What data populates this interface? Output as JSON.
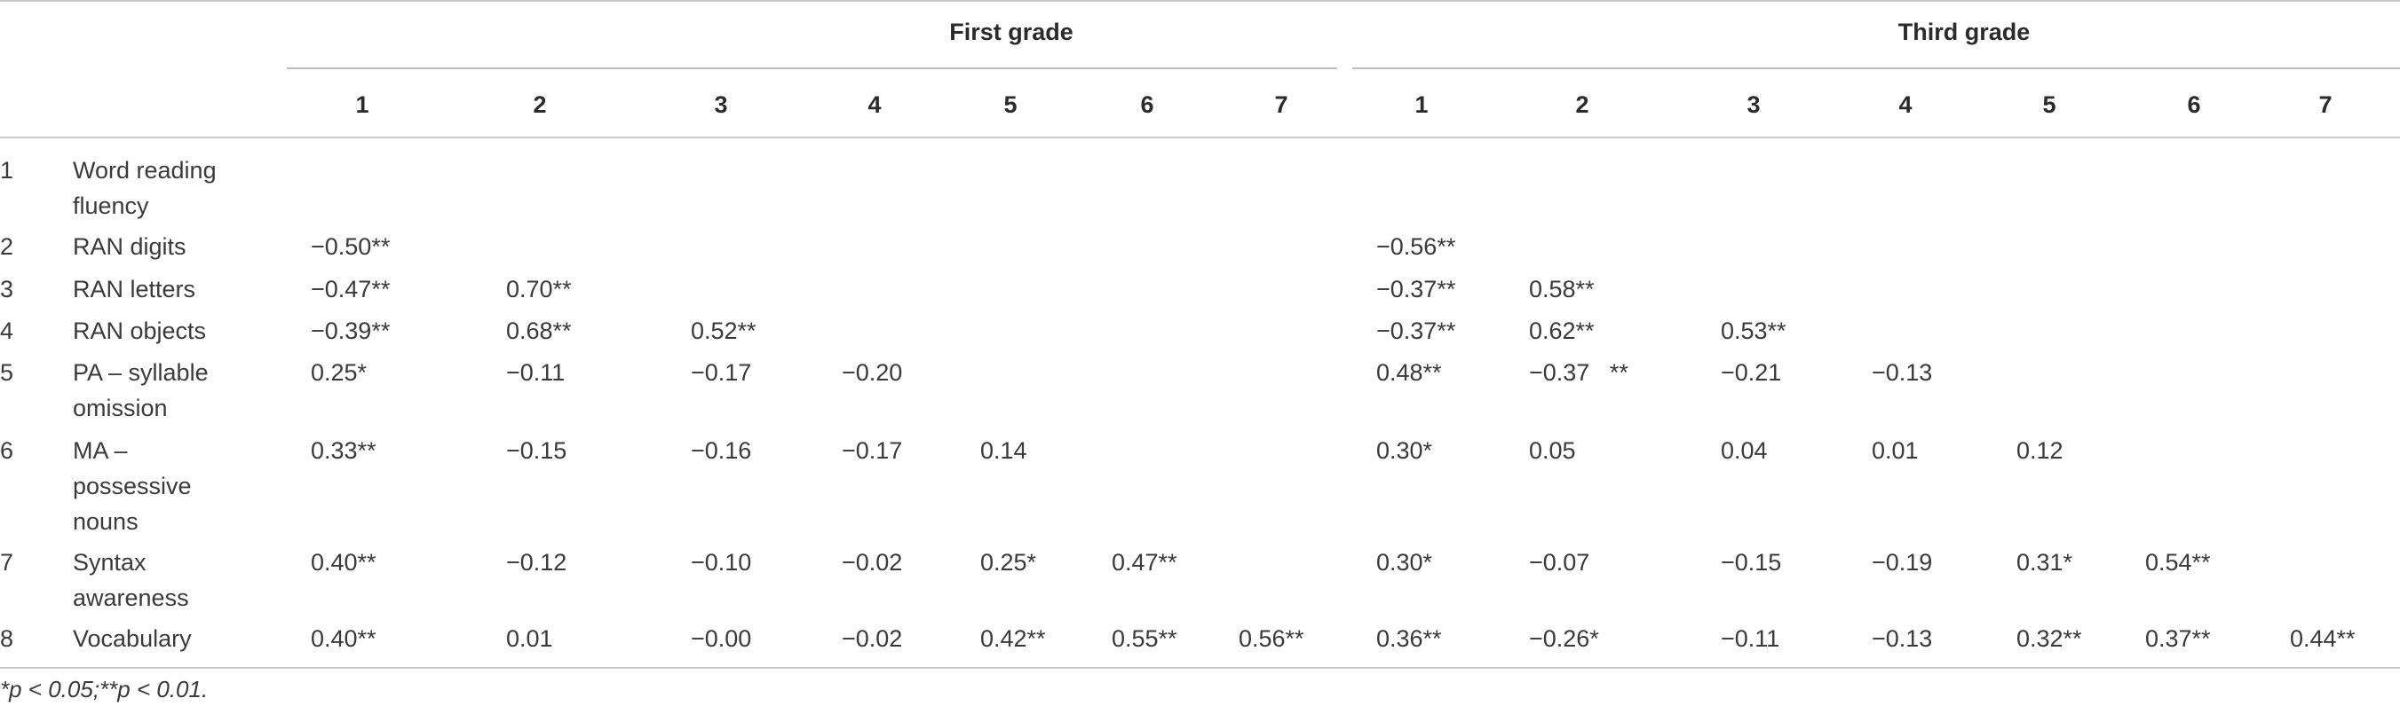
{
  "groups": [
    {
      "label": "First grade",
      "columns": [
        "1",
        "2",
        "3",
        "4",
        "5",
        "6",
        "7"
      ]
    },
    {
      "label": "Third grade",
      "columns": [
        "1",
        "2",
        "3",
        "4",
        "5",
        "6",
        "7"
      ]
    }
  ],
  "rows": [
    {
      "num": "1",
      "label": "Word reading fluency",
      "lines": [
        "Word reading",
        "fluency"
      ],
      "first": [
        "",
        "",
        "",
        "",
        "",
        "",
        ""
      ],
      "third": [
        "",
        "",
        "",
        "",
        "",
        "",
        ""
      ]
    },
    {
      "num": "2",
      "label": "RAN digits",
      "lines": [
        "RAN digits"
      ],
      "first": [
        "−0.50**",
        "",
        "",
        "",
        "",
        "",
        ""
      ],
      "third": [
        "−0.56**",
        "",
        "",
        "",
        "",
        "",
        ""
      ]
    },
    {
      "num": "3",
      "label": "RAN letters",
      "lines": [
        "RAN letters"
      ],
      "first": [
        "−0.47**",
        "0.70**",
        "",
        "",
        "",
        "",
        ""
      ],
      "third": [
        "−0.37**",
        "0.58**",
        "",
        "",
        "",
        "",
        ""
      ]
    },
    {
      "num": "4",
      "label": "RAN objects",
      "lines": [
        "RAN objects"
      ],
      "first": [
        "−0.39**",
        "0.68**",
        "0.52**",
        "",
        "",
        "",
        ""
      ],
      "third": [
        "−0.37**",
        "0.62**",
        "0.53**",
        "",
        "",
        "",
        ""
      ]
    },
    {
      "num": "5",
      "label": "PA – syllable omission",
      "lines": [
        "PA – syllable",
        "omission"
      ],
      "first": [
        "0.25*",
        "−0.11",
        "−0.17",
        "−0.20",
        "",
        "",
        ""
      ],
      "third": [
        "0.48**",
        "−0.37   **",
        "−0.21",
        "−0.13",
        "",
        "",
        ""
      ]
    },
    {
      "num": "6",
      "label": "MA – possessive nouns",
      "lines": [
        "MA –",
        "possessive",
        "nouns"
      ],
      "first": [
        "0.33**",
        "−0.15",
        "−0.16",
        "−0.17",
        "0.14",
        "",
        ""
      ],
      "third": [
        "0.30*",
        "0.05",
        "0.04",
        "0.01",
        "0.12",
        "",
        ""
      ]
    },
    {
      "num": "7",
      "label": "Syntax awareness",
      "lines": [
        "Syntax",
        "awareness"
      ],
      "first": [
        "0.40**",
        "−0.12",
        "−0.10",
        "−0.02",
        "0.25*",
        "0.47**",
        ""
      ],
      "third": [
        "0.30*",
        "−0.07",
        "−0.15",
        "−0.19",
        "0.31*",
        "0.54**",
        ""
      ]
    },
    {
      "num": "8",
      "label": "Vocabulary",
      "lines": [
        "Vocabulary"
      ],
      "first": [
        "0.40**",
        "0.01",
        "−0.00",
        "−0.02",
        "0.42**",
        "0.55**",
        "0.56**"
      ],
      "third": [
        "0.36**",
        "−0.26*",
        "−0.11",
        "−0.13",
        "0.32**",
        "0.37**",
        "0.44**"
      ]
    }
  ],
  "footnote": "*p < 0.05;**p < 0.01."
}
